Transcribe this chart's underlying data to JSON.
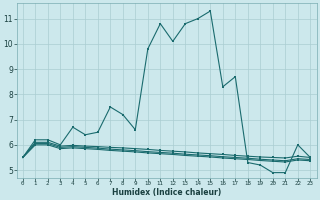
{
  "xlabel": "Humidex (Indice chaleur)",
  "bg_color": "#cce8ec",
  "grid_color": "#aacdd2",
  "line_color": "#1a6b6e",
  "xlim": [
    -0.5,
    23.5
  ],
  "ylim": [
    4.7,
    11.6
  ],
  "xtick_labels": [
    "0",
    "1",
    "2",
    "3",
    "4",
    "5",
    "6",
    "7",
    "8",
    "9",
    "10",
    "11",
    "12",
    "13",
    "14",
    "15",
    "16",
    "17",
    "18",
    "19",
    "20",
    "21",
    "22",
    "23"
  ],
  "ytick_labels": [
    "5",
    "6",
    "7",
    "8",
    "9",
    "10",
    "11"
  ],
  "ytick_vals": [
    5,
    6,
    7,
    8,
    9,
    10,
    11
  ],
  "lines": [
    {
      "x": [
        0,
        1,
        2,
        3,
        4,
        5,
        6,
        7,
        8,
        9,
        10,
        11,
        12,
        13,
        14,
        15,
        16,
        17,
        18,
        19,
        20,
        21,
        22,
        23
      ],
      "y": [
        5.5,
        6.2,
        6.2,
        6.0,
        6.7,
        6.4,
        6.5,
        7.5,
        7.2,
        6.6,
        9.8,
        10.8,
        10.1,
        10.8,
        11.0,
        11.3,
        8.3,
        8.7,
        5.3,
        5.2,
        4.9,
        4.9,
        6.0,
        5.5
      ]
    },
    {
      "x": [
        0,
        1,
        2,
        3,
        4,
        5,
        6,
        7,
        8,
        9,
        10,
        11,
        12,
        13,
        14,
        15,
        16,
        17,
        18,
        19,
        20,
        21,
        22,
        23
      ],
      "y": [
        5.5,
        6.1,
        6.1,
        5.95,
        5.98,
        5.95,
        5.93,
        5.9,
        5.88,
        5.85,
        5.82,
        5.78,
        5.75,
        5.72,
        5.68,
        5.65,
        5.62,
        5.58,
        5.55,
        5.52,
        5.5,
        5.48,
        5.55,
        5.5
      ]
    },
    {
      "x": [
        0,
        1,
        2,
        3,
        4,
        5,
        6,
        7,
        8,
        9,
        10,
        11,
        12,
        13,
        14,
        15,
        16,
        17,
        18,
        19,
        20,
        21,
        22,
        23
      ],
      "y": [
        5.5,
        6.05,
        6.05,
        5.9,
        5.93,
        5.9,
        5.87,
        5.83,
        5.8,
        5.77,
        5.73,
        5.7,
        5.67,
        5.63,
        5.6,
        5.57,
        5.53,
        5.5,
        5.47,
        5.43,
        5.4,
        5.37,
        5.45,
        5.42
      ]
    },
    {
      "x": [
        0,
        1,
        2,
        3,
        4,
        5,
        6,
        7,
        8,
        9,
        10,
        11,
        12,
        13,
        14,
        15,
        16,
        17,
        18,
        19,
        20,
        21,
        22,
        23
      ],
      "y": [
        5.5,
        6.0,
        6.0,
        5.85,
        5.88,
        5.85,
        5.82,
        5.78,
        5.75,
        5.72,
        5.68,
        5.65,
        5.62,
        5.58,
        5.55,
        5.52,
        5.48,
        5.45,
        5.42,
        5.38,
        5.35,
        5.32,
        5.4,
        5.37
      ]
    }
  ]
}
